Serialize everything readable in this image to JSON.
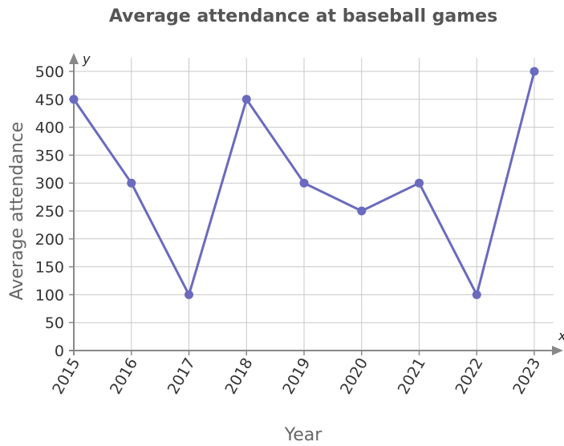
{
  "chart_data": {
    "type": "line",
    "title": "Average attendance at baseball games",
    "xlabel": "Year",
    "ylabel": "Average attendance",
    "x_axis_letter": "x",
    "y_axis_letter": "y",
    "categories": [
      "2015",
      "2016",
      "2017",
      "2018",
      "2019",
      "2020",
      "2021",
      "2022",
      "2023"
    ],
    "series": [
      {
        "values": [
          450,
          300,
          100,
          450,
          300,
          250,
          300,
          100,
          500
        ]
      }
    ],
    "ylim": [
      0,
      500
    ],
    "yticks": [
      0,
      50,
      100,
      150,
      200,
      250,
      300,
      350,
      400,
      450,
      500
    ],
    "grid": true,
    "colors": {
      "line": "#6a6abf",
      "point": "#6a6abf",
      "grid": "#c8c8c8",
      "axis": "#888888"
    }
  }
}
